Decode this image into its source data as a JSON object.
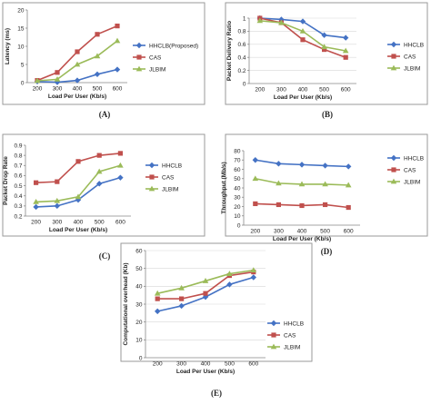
{
  "colors": {
    "blue": "#4472c4",
    "red": "#c0504d",
    "green": "#9bbb59"
  },
  "chart_data": [
    {
      "id": "A",
      "type": "line",
      "caption": "(A)",
      "xlabel": "Load Per User (Kb/s)",
      "ylabel": "Latency (ms)",
      "categories": [
        "200",
        "300",
        "400",
        "500",
        "600"
      ],
      "ylim": [
        0,
        20
      ],
      "yticks": [
        0,
        5,
        10,
        15,
        20
      ],
      "grid": false,
      "legend": "right",
      "series": [
        {
          "name": "HHCLB(Proposed)",
          "color": "#4472c4",
          "marker": "diamond",
          "values": [
            0.3,
            0.1,
            0.6,
            2.3,
            3.6
          ]
        },
        {
          "name": "CAS",
          "color": "#c0504d",
          "marker": "square",
          "values": [
            0.6,
            2.8,
            8.5,
            13.3,
            15.6
          ]
        },
        {
          "name": "JLBIM",
          "color": "#9bbb59",
          "marker": "triangle",
          "values": [
            0.5,
            0.9,
            5.0,
            7.3,
            11.5
          ]
        }
      ]
    },
    {
      "id": "B",
      "type": "line",
      "caption": "(B)",
      "xlabel": "Load Per User (Kb/s)",
      "ylabel": "Packet Delivery Ratio",
      "categories": [
        "200",
        "300",
        "400",
        "500",
        "600"
      ],
      "ylim": [
        0,
        1
      ],
      "yticks": [
        0,
        0.2,
        0.4,
        0.6,
        0.8,
        1
      ],
      "grid": true,
      "legend": "right",
      "series": [
        {
          "name": "HHCLB",
          "color": "#4472c4",
          "marker": "diamond",
          "values": [
            1.0,
            0.98,
            0.95,
            0.74,
            0.7
          ]
        },
        {
          "name": "CAS",
          "color": "#c0504d",
          "marker": "square",
          "values": [
            1.0,
            0.93,
            0.67,
            0.52,
            0.4
          ]
        },
        {
          "name": "JLBIM",
          "color": "#9bbb59",
          "marker": "triangle",
          "values": [
            0.96,
            0.93,
            0.8,
            0.56,
            0.5
          ]
        }
      ]
    },
    {
      "id": "C",
      "type": "line",
      "caption": "(C)",
      "xlabel": "Load Per User (Kb/s)",
      "ylabel": "Packet Drop Rate",
      "categories": [
        "200",
        "300",
        "400",
        "500",
        "600"
      ],
      "ylim": [
        0.2,
        0.9
      ],
      "yticks": [
        0.2,
        0.3,
        0.4,
        0.5,
        0.6,
        0.7,
        0.8,
        0.9
      ],
      "grid": false,
      "legend": "right",
      "series": [
        {
          "name": "HHCLB",
          "color": "#4472c4",
          "marker": "diamond",
          "values": [
            0.29,
            0.3,
            0.36,
            0.52,
            0.58
          ]
        },
        {
          "name": "CAS",
          "color": "#c0504d",
          "marker": "square",
          "values": [
            0.53,
            0.54,
            0.74,
            0.8,
            0.82
          ]
        },
        {
          "name": "JLBIM",
          "color": "#9bbb59",
          "marker": "triangle",
          "values": [
            0.34,
            0.35,
            0.39,
            0.64,
            0.7
          ]
        }
      ]
    },
    {
      "id": "D",
      "type": "line",
      "caption": "(D)",
      "xlabel": "Load Per User (Kb/s)",
      "ylabel": "Throughput (Mb/s)",
      "categories": [
        "200",
        "300",
        "400",
        "500",
        "600"
      ],
      "ylim": [
        0,
        80
      ],
      "yticks": [
        0,
        10,
        20,
        30,
        40,
        50,
        60,
        70,
        80
      ],
      "grid": false,
      "legend": "right",
      "series": [
        {
          "name": "HHCLB",
          "color": "#4472c4",
          "marker": "diamond",
          "values": [
            70,
            66,
            65,
            64,
            63
          ]
        },
        {
          "name": "CAS",
          "color": "#c0504d",
          "marker": "square",
          "values": [
            23,
            22,
            21,
            22,
            19
          ]
        },
        {
          "name": "JLBIM",
          "color": "#9bbb59",
          "marker": "triangle",
          "values": [
            50,
            45,
            44,
            44,
            43
          ]
        }
      ]
    },
    {
      "id": "E",
      "type": "line",
      "caption": "(E)",
      "xlabel": "Load Per User (Kb/s)",
      "ylabel": "Computational overhead (Kb)",
      "categories": [
        "200",
        "300",
        "400",
        "500",
        "600"
      ],
      "ylim": [
        0,
        60
      ],
      "yticks": [
        0,
        10,
        20,
        30,
        40,
        50,
        60
      ],
      "grid": true,
      "legend": "right",
      "series": [
        {
          "name": "HHCLB",
          "color": "#4472c4",
          "marker": "diamond",
          "values": [
            26,
            29,
            34,
            41,
            45
          ]
        },
        {
          "name": "CAS",
          "color": "#c0504d",
          "marker": "square",
          "values": [
            33,
            33,
            36,
            46,
            48
          ]
        },
        {
          "name": "JLBIM",
          "color": "#9bbb59",
          "marker": "triangle",
          "values": [
            36,
            39,
            43,
            47,
            49
          ]
        }
      ]
    }
  ]
}
